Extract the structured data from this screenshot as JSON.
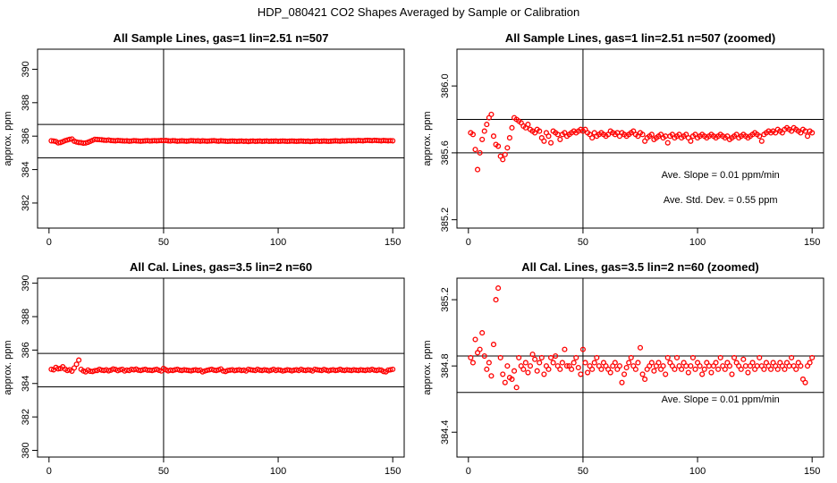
{
  "suptitle": "HDP_080421  CO2 Shapes Averaged by Sample or Calibration",
  "chart_data": [
    {
      "type": "scatter",
      "title": "All Sample Lines, gas=1 lin=2.51 n=507",
      "xlabel": "",
      "ylabel": "approx. ppm",
      "xlim": [
        -5,
        155
      ],
      "ylim": [
        380.5,
        391.2
      ],
      "xticks": [
        0,
        50,
        100,
        150
      ],
      "yticks": [
        382,
        384,
        386,
        388,
        390
      ],
      "ytick_labels": [
        "382",
        "384",
        "386",
        "388",
        "390"
      ],
      "hlines": [
        386.7,
        384.7
      ],
      "vlines": [
        50
      ],
      "marker_color": "#ff0000",
      "x_start": 1,
      "y": [
        385.72,
        385.71,
        385.68,
        385.6,
        385.62,
        385.67,
        385.73,
        385.77,
        385.81,
        385.83,
        385.7,
        385.65,
        385.62,
        385.61,
        385.58,
        385.59,
        385.63,
        385.69,
        385.75,
        385.81,
        385.8,
        385.79,
        385.78,
        385.76,
        385.75,
        385.77,
        385.74,
        385.73,
        385.72,
        385.74,
        385.73,
        385.72,
        385.71,
        385.72,
        385.7,
        385.71,
        385.73,
        385.72,
        385.71,
        385.7,
        385.71,
        385.72,
        385.73,
        385.71,
        385.72,
        385.73,
        385.72,
        385.73,
        385.74,
        385.73,
        385.74,
        385.72,
        385.71,
        385.73,
        385.72,
        385.7,
        385.71,
        385.72,
        385.71,
        385.7,
        385.71,
        385.73,
        385.72,
        385.71,
        385.72,
        385.7,
        385.72,
        385.71,
        385.7,
        385.71,
        385.72,
        385.73,
        385.71,
        385.7,
        385.72,
        385.71,
        385.7,
        385.69,
        385.7,
        385.71,
        385.7,
        385.69,
        385.7,
        385.71,
        385.69,
        385.7,
        385.68,
        385.7,
        385.71,
        385.69,
        385.7,
        385.71,
        385.69,
        385.7,
        385.71,
        385.69,
        385.7,
        385.7,
        385.71,
        385.69,
        385.7,
        385.71,
        385.7,
        385.69,
        385.7,
        385.71,
        385.7,
        385.69,
        385.7,
        385.71,
        385.7,
        385.69,
        385.7,
        385.68,
        385.69,
        385.7,
        385.71,
        385.69,
        385.7,
        385.71,
        385.7,
        385.69,
        385.7,
        385.71,
        385.72,
        385.71,
        385.7,
        385.72,
        385.71,
        385.72,
        385.73,
        385.72,
        385.73,
        385.72,
        385.74,
        385.73,
        385.72,
        385.74,
        385.75,
        385.74,
        385.73,
        385.75,
        385.74,
        385.73,
        385.72,
        385.74,
        385.73,
        385.72,
        385.73,
        385.72
      ],
      "annotations": []
    },
    {
      "type": "scatter",
      "title": "All Sample Lines, gas=1 lin=2.51 n=507 (zoomed)",
      "xlabel": "",
      "ylabel": "approx. ppm",
      "xlim": [
        -5,
        155
      ],
      "ylim": [
        385.15,
        386.22
      ],
      "xticks": [
        0,
        50,
        100,
        150
      ],
      "yticks": [
        385.2,
        385.6,
        386.0
      ],
      "ytick_labels": [
        "385.2",
        "385.6",
        "386.0"
      ],
      "hlines": [
        385.8,
        385.6
      ],
      "vlines": [
        50
      ],
      "marker_color": "#ff0000",
      "x_start": 1,
      "y": [
        385.72,
        385.71,
        385.62,
        385.5,
        385.6,
        385.68,
        385.73,
        385.77,
        385.81,
        385.83,
        385.7,
        385.65,
        385.64,
        385.58,
        385.56,
        385.59,
        385.63,
        385.69,
        385.75,
        385.81,
        385.8,
        385.79,
        385.78,
        385.76,
        385.75,
        385.77,
        385.74,
        385.73,
        385.72,
        385.74,
        385.73,
        385.69,
        385.67,
        385.72,
        385.7,
        385.66,
        385.73,
        385.72,
        385.71,
        385.68,
        385.71,
        385.72,
        385.7,
        385.71,
        385.72,
        385.73,
        385.72,
        385.73,
        385.74,
        385.73,
        385.74,
        385.72,
        385.71,
        385.69,
        385.72,
        385.7,
        385.71,
        385.72,
        385.71,
        385.7,
        385.71,
        385.73,
        385.72,
        385.71,
        385.72,
        385.7,
        385.72,
        385.71,
        385.7,
        385.71,
        385.72,
        385.73,
        385.71,
        385.7,
        385.72,
        385.71,
        385.67,
        385.69,
        385.7,
        385.71,
        385.68,
        385.69,
        385.7,
        385.71,
        385.69,
        385.7,
        385.66,
        385.7,
        385.71,
        385.69,
        385.7,
        385.71,
        385.69,
        385.7,
        385.71,
        385.69,
        385.67,
        385.7,
        385.71,
        385.69,
        385.7,
        385.71,
        385.7,
        385.69,
        385.7,
        385.71,
        385.7,
        385.69,
        385.7,
        385.71,
        385.7,
        385.69,
        385.7,
        385.68,
        385.69,
        385.7,
        385.71,
        385.69,
        385.7,
        385.71,
        385.7,
        385.69,
        385.7,
        385.71,
        385.72,
        385.71,
        385.7,
        385.67,
        385.71,
        385.72,
        385.73,
        385.72,
        385.73,
        385.72,
        385.74,
        385.73,
        385.72,
        385.74,
        385.75,
        385.74,
        385.73,
        385.75,
        385.74,
        385.73,
        385.72,
        385.74,
        385.73,
        385.7,
        385.73,
        385.72
      ],
      "annotations": [
        {
          "text": "Ave. Slope =  0.01  ppm/min",
          "x": 110,
          "y": 385.45
        },
        {
          "text": "Ave. Std. Dev. =  0.55  ppm",
          "x": 110,
          "y": 385.3
        }
      ]
    },
    {
      "type": "scatter",
      "title": "All Cal. Lines, gas=3.5 lin=2 n=60",
      "xlabel": "",
      "ylabel": "approx. ppm",
      "xlim": [
        -5,
        155
      ],
      "ylim": [
        379.6,
        390.3
      ],
      "xticks": [
        0,
        50,
        100,
        150
      ],
      "yticks": [
        380,
        382,
        384,
        386,
        388,
        390
      ],
      "ytick_labels": [
        "380",
        "382",
        "384",
        "386",
        "388",
        "390"
      ],
      "hlines": [
        385.8,
        383.8
      ],
      "vlines": [
        50
      ],
      "marker_color": "#ff0000",
      "x_start": 1,
      "y": [
        384.85,
        384.82,
        384.96,
        384.88,
        384.9,
        385.0,
        384.86,
        384.78,
        384.82,
        384.74,
        384.93,
        385.15,
        385.4,
        384.85,
        384.75,
        384.7,
        384.8,
        384.73,
        384.72,
        384.77,
        384.78,
        384.85,
        384.8,
        384.78,
        384.82,
        384.76,
        384.8,
        384.87,
        384.84,
        384.77,
        384.82,
        384.85,
        384.75,
        384.8,
        384.78,
        384.85,
        384.82,
        384.86,
        384.8,
        384.78,
        384.82,
        384.85,
        384.8,
        384.8,
        384.78,
        384.82,
        384.85,
        384.79,
        384.75,
        384.9,
        384.82,
        384.76,
        384.8,
        384.78,
        384.82,
        384.85,
        384.8,
        384.78,
        384.82,
        384.8,
        384.78,
        384.76,
        384.8,
        384.82,
        384.78,
        384.8,
        384.7,
        384.75,
        384.79,
        384.82,
        384.85,
        384.8,
        384.78,
        384.82,
        384.87,
        384.75,
        384.72,
        384.78,
        384.8,
        384.82,
        384.77,
        384.8,
        384.82,
        384.78,
        384.8,
        384.75,
        384.85,
        384.82,
        384.8,
        384.78,
        384.85,
        384.8,
        384.78,
        384.82,
        384.8,
        384.76,
        384.8,
        384.85,
        384.78,
        384.82,
        384.8,
        384.75,
        384.78,
        384.82,
        384.8,
        384.76,
        384.8,
        384.82,
        384.78,
        384.85,
        384.8,
        384.78,
        384.82,
        384.8,
        384.75,
        384.85,
        384.82,
        384.8,
        384.78,
        384.84,
        384.8,
        384.76,
        384.8,
        384.82,
        384.78,
        384.8,
        384.85,
        384.8,
        384.78,
        384.82,
        384.8,
        384.78,
        384.82,
        384.8,
        384.78,
        384.82,
        384.8,
        384.78,
        384.82,
        384.8,
        384.85,
        384.8,
        384.78,
        384.82,
        384.8,
        384.72,
        384.7,
        384.8,
        384.82,
        384.85
      ],
      "annotations": []
    },
    {
      "type": "scatter",
      "title": "All Cal. Lines, gas=3.5 lin=2 n=60 (zoomed)",
      "xlabel": "",
      "ylabel": "approx. ppm",
      "xlim": [
        -5,
        155
      ],
      "ylim": [
        384.25,
        385.33
      ],
      "xticks": [
        0,
        50,
        100,
        150
      ],
      "yticks": [
        384.4,
        384.8,
        385.2
      ],
      "ytick_labels": [
        "384.4",
        "384.8",
        "385.2"
      ],
      "hlines": [
        384.86,
        384.64
      ],
      "vlines": [
        50
      ],
      "marker_color": "#ff0000",
      "x_start": 1,
      "y": [
        384.85,
        384.82,
        384.96,
        384.88,
        384.9,
        385.0,
        384.86,
        384.78,
        384.82,
        384.74,
        384.93,
        385.2,
        385.27,
        384.85,
        384.75,
        384.7,
        384.8,
        384.73,
        384.72,
        384.77,
        384.67,
        384.85,
        384.8,
        384.78,
        384.82,
        384.76,
        384.8,
        384.87,
        384.84,
        384.77,
        384.82,
        384.85,
        384.75,
        384.8,
        384.78,
        384.85,
        384.82,
        384.86,
        384.8,
        384.78,
        384.82,
        384.9,
        384.8,
        384.8,
        384.78,
        384.82,
        384.85,
        384.79,
        384.75,
        384.9,
        384.82,
        384.76,
        384.8,
        384.78,
        384.82,
        384.85,
        384.8,
        384.78,
        384.82,
        384.8,
        384.78,
        384.76,
        384.8,
        384.82,
        384.78,
        384.8,
        384.7,
        384.75,
        384.79,
        384.82,
        384.85,
        384.8,
        384.78,
        384.82,
        384.91,
        384.75,
        384.72,
        384.78,
        384.8,
        384.82,
        384.77,
        384.8,
        384.82,
        384.78,
        384.8,
        384.75,
        384.85,
        384.82,
        384.8,
        384.78,
        384.85,
        384.8,
        384.78,
        384.82,
        384.8,
        384.76,
        384.8,
        384.85,
        384.78,
        384.82,
        384.8,
        384.75,
        384.78,
        384.82,
        384.8,
        384.76,
        384.8,
        384.82,
        384.78,
        384.85,
        384.8,
        384.78,
        384.82,
        384.8,
        384.75,
        384.85,
        384.82,
        384.8,
        384.78,
        384.84,
        384.8,
        384.76,
        384.8,
        384.82,
        384.78,
        384.8,
        384.85,
        384.8,
        384.78,
        384.82,
        384.8,
        384.78,
        384.82,
        384.8,
        384.78,
        384.82,
        384.8,
        384.78,
        384.82,
        384.8,
        384.85,
        384.8,
        384.78,
        384.82,
        384.8,
        384.72,
        384.7,
        384.8,
        384.82,
        384.85
      ],
      "annotations": [
        {
          "text": "Ave. Slope =  0.01  ppm/min",
          "x": 110,
          "y": 384.58
        }
      ]
    }
  ]
}
